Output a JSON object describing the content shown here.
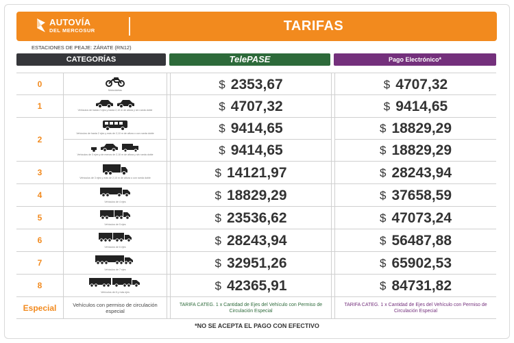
{
  "brand": {
    "line1": "AUTOVÍA",
    "line2": "DEL MERCOSUR"
  },
  "title": "TARIFAS",
  "stations": "ESTACIONES DE PEAJE: ZÁRATE (RN12)",
  "columns": {
    "categories": "CATEGORÍAS",
    "telepase": "TelePASE",
    "pago": "Pago Electrónico*"
  },
  "currency": "$",
  "rows": [
    {
      "category": "0",
      "entries": [
        {
          "vehicle": "Motocicletas",
          "telepase": "2353,67",
          "pago": "4707,32"
        }
      ]
    },
    {
      "category": "1",
      "entries": [
        {
          "vehicle": "Vehículos de hasta 2 ejes y hasta 2,10 m de altura y sin rueda doble",
          "telepase": "4707,32",
          "pago": "9414,65"
        }
      ]
    },
    {
      "category": "2",
      "entries": [
        {
          "vehicle": "Vehículos de hasta 2 ejes y más de 2,10 m de altura o con rueda doble",
          "telepase": "9414,65",
          "pago": "18829,29"
        },
        {
          "vehicle": "Vehículos de 3 ejes y de menos de 2,10 m de altura y sin rueda doble",
          "telepase": "9414,65",
          "pago": "18829,29"
        }
      ]
    },
    {
      "category": "3",
      "entries": [
        {
          "vehicle": "Vehículos de 3 ejes y más de 2,10 m de altura o con rueda doble",
          "telepase": "14121,97",
          "pago": "28243,94"
        }
      ]
    },
    {
      "category": "4",
      "entries": [
        {
          "vehicle": "Vehículos de 4 ejes",
          "telepase": "18829,29",
          "pago": "37658,59"
        }
      ]
    },
    {
      "category": "5",
      "entries": [
        {
          "vehicle": "Vehículos de 5 ejes",
          "telepase": "23536,62",
          "pago": "47073,24"
        }
      ]
    },
    {
      "category": "6",
      "entries": [
        {
          "vehicle": "Vehículos de 6 ejes",
          "telepase": "28243,94",
          "pago": "56487,88"
        }
      ]
    },
    {
      "category": "7",
      "entries": [
        {
          "vehicle": "Vehículos de 7 ejes",
          "telepase": "32951,26",
          "pago": "65902,53"
        }
      ]
    },
    {
      "category": "8",
      "entries": [
        {
          "vehicle": "Vehículos de 8 y más ejes",
          "telepase": "42365,91",
          "pago": "84731,82"
        }
      ]
    }
  ],
  "especial": {
    "category": "Especial",
    "vehicle": "Vehículos con permiso de circulación especial",
    "telepase": "TARIFA CATEG. 1 x Cantidad de Ejes del Vehículo con Permiso de Circulación Especial",
    "pago": "TARIFA CATEG. 1 x Cantidad de Ejes del Vehículo con Permiso de Circulación Especial"
  },
  "footnote": "*NO SE ACEPTA EL PAGO CON EFECTIVO",
  "colors": {
    "orange": "#f28a1e",
    "dark": "#35363a",
    "green": "#2d6a3a",
    "purple": "#74307c"
  }
}
